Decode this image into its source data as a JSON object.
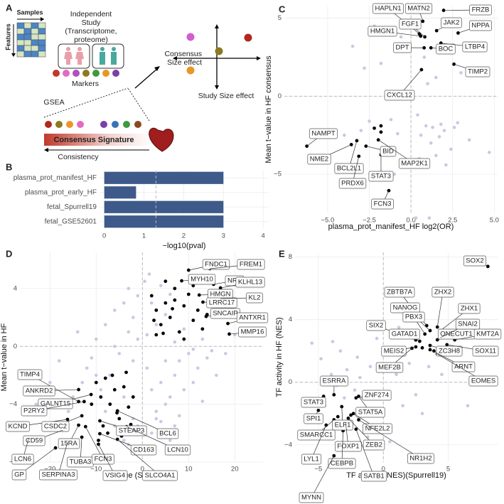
{
  "diagram": {
    "panel": "A",
    "samples": "Samples",
    "features": "Features",
    "study": [
      "Independent",
      "Study",
      "(Transcriptome,",
      "proteome)"
    ],
    "markers": "Markers",
    "gsea": "GSEA",
    "signature": "Consensus Signature",
    "consistency": "Consistency",
    "consensus_axis": [
      "Consensus",
      "Size effect"
    ],
    "study_axis": "Study Size effect"
  },
  "chart_data": [
    {
      "type": "bar",
      "panel": "B",
      "categories": [
        "plasma_prot_manifest_HF",
        "plasma_prot_early_HF",
        "fetal_Spurrell19",
        "fetal_GSE52601"
      ],
      "values": [
        3,
        0.8,
        3,
        3
      ],
      "color": "#3d5a8a",
      "xlabel": "−log10(pval)",
      "xlim": [
        -0.12,
        4.14
      ],
      "xticks": [
        0,
        1,
        2,
        3,
        4
      ],
      "vline": 1.3,
      "grid": true
    },
    {
      "type": "scatter",
      "panel": "C",
      "xlabel": "plasma_prot_manifest_HF log2(OR)",
      "ylabel": "Mean t−value in HF consensus",
      "xlim": [
        -7.6,
        5.2
      ],
      "ylim": [
        -7.5,
        5.8
      ],
      "xticks": [
        {
          "value": -5,
          "label": "−5.0"
        },
        {
          "value": -2.5,
          "label": "−2.5"
        },
        {
          "value": 0,
          "label": "0.0"
        },
        {
          "value": 2.5,
          "label": "2.5"
        },
        {
          "value": 5,
          "label": "5.0"
        }
      ],
      "yticks": [
        {
          "value": -5,
          "label": "−5"
        },
        0,
        5
      ],
      "vline": 0,
      "hline": 0,
      "grid": true,
      "series": [
        {
          "color": "#c9c9e3",
          "x": [
            -2.2,
            -3.5,
            -1.8,
            -0.6,
            -2.8,
            0.8,
            1.5,
            2.2,
            3.0,
            1.0,
            0.4,
            1.8,
            2.6,
            -1.2,
            -0.8,
            0.6,
            1.2,
            2.0,
            2.8,
            1.5,
            -2.5,
            -1.5,
            -3.0,
            -0.5,
            0.9,
            1.7,
            2.4,
            3.5,
            -4.0,
            -1.0,
            0.3,
            1.1,
            2.1,
            -2.0,
            4.7,
            0.5,
            1.3
          ],
          "y": [
            4.5,
            3.2,
            2.1,
            3.8,
            1.8,
            2.5,
            1.2,
            3.0,
            1.5,
            0.8,
            -1.2,
            -1.8,
            -2.0,
            -1.5,
            -2.4,
            -2.5,
            -3.0,
            -2.2,
            -1.7,
            -3.8,
            -1.6,
            -3.3,
            -2.2,
            -4.2,
            -1.9,
            -2.6,
            -3.4,
            -2.8,
            -2.5,
            -5.0,
            -7.8,
            -7.8,
            -4.4,
            -5.3,
            -3.6,
            -4.0,
            -2.0
          ]
        },
        {
          "color": "#000000",
          "labels": [
            "HAPLN1",
            "MATN2",
            "FRZB",
            "NPPA",
            "JAK2",
            "FGF1",
            "HMGN1",
            "DPT",
            "BOC",
            "LTBP4",
            "TIMP2",
            "CXCL12",
            "NAMPT",
            "NME2",
            "BCL2L1",
            "BID",
            "PRDX6",
            "STAT3",
            "MAP2K1",
            "FCN3",
            null,
            null,
            null
          ],
          "x": [
            0.5,
            0.71,
            1.96,
            2.83,
            1.54,
            0.83,
            0.58,
            0.79,
            1.2,
            1.8,
            2.58,
            0.63,
            -6.25,
            -3.58,
            -3.25,
            -2.7,
            -3.13,
            -1.8,
            -1.96,
            -1.33,
            -1.8,
            -2.2,
            -1.8
          ],
          "y": [
            4.0,
            4.8,
            5.5,
            4.05,
            4.2,
            3.8,
            3.85,
            3.1,
            3.1,
            3.4,
            2.05,
            1.7,
            -3.2,
            -3.1,
            -2.85,
            -3.2,
            -3.85,
            -3.75,
            -2.8,
            -6.05,
            -2.3,
            -2.05,
            -1.9
          ]
        }
      ]
    },
    {
      "type": "scatter",
      "panel": "D",
      "xlabel": "t−value (Spurrell19)",
      "ylabel": "Mean t−value in HF",
      "xlim": [
        -26.5,
        26.1
      ],
      "ylim": [
        -8,
        6.5
      ],
      "xticks": [
        {
          "value": -20,
          "label": "−20"
        },
        {
          "value": -10,
          "label": "−10"
        },
        0,
        10,
        20
      ],
      "yticks": [
        {
          "value": -8,
          "label": "−8"
        },
        {
          "value": -4,
          "label": "−4"
        },
        0,
        4
      ],
      "vline": 0,
      "hline": 0,
      "grid": true,
      "series": [
        {
          "color": "#c9c9e3",
          "x": [
            -20,
            -18,
            -15,
            -12,
            -10,
            -8,
            -6,
            -4,
            -3,
            -2,
            -1,
            -5,
            -7,
            -9,
            -11,
            -13,
            -16,
            -3,
            -1,
            -2,
            -4,
            -6,
            1,
            2,
            3,
            4,
            5,
            6,
            7,
            8,
            10,
            12,
            14,
            16,
            18,
            20,
            3,
            5,
            7,
            9,
            11,
            13,
            2,
            4,
            6,
            8,
            -1,
            -3,
            1,
            3,
            5,
            7,
            9,
            11,
            13,
            15,
            -8,
            -6,
            -4,
            -2,
            0.5,
            2,
            4,
            6,
            -10,
            -14,
            22,
            -23,
            -19,
            1.5
          ],
          "y": [
            -2.5,
            -1,
            -3.5,
            -1.5,
            0.5,
            1.5,
            2.5,
            3.0,
            4.0,
            2.0,
            0.5,
            -0.5,
            -2.0,
            -3.0,
            -0.8,
            -2.5,
            -4.5,
            1.0,
            3.5,
            -1.0,
            -3.5,
            0.0,
            -1.5,
            -3.0,
            -4.5,
            -2.5,
            -1.0,
            -3.5,
            -2.0,
            -1.0,
            -0.5,
            -1.5,
            -0.8,
            -2.0,
            -0.5,
            0.8,
            -5.0,
            -4.0,
            -5.5,
            -3.0,
            -2.5,
            -3.8,
            -6.0,
            -5.2,
            -6.5,
            -4.8,
            -5.5,
            -6.8,
            0.8,
            1.5,
            2.2,
            0.3,
            1.2,
            -0.2,
            0.5,
            -0.3,
            -4.5,
            -5.5,
            -6.5,
            -5.0,
            4.5,
            3.0,
            4.2,
            3.6,
            -2.0,
            1.0,
            1.8,
            -4.0,
            -5.5,
            5.0
          ]
        },
        {
          "color": "#000000",
          "labels": [
            "FNDC1",
            "FREM1",
            "MYH10",
            "NRK",
            "HMGN",
            "KLHL13",
            "LRRC17",
            "KL2",
            "SNCAIP",
            "ANTXR1",
            "MMP16",
            "TIMP4",
            "ANKRD2",
            "GALNT15",
            "P2RY2",
            "KCND",
            "CSDC2",
            "CD59",
            "15RA",
            "TUBA3",
            "FCN3",
            "STEAP3",
            "BCL6",
            "CD163",
            "LCN10",
            "VSIG4",
            "SLCO4A1",
            "LCN6",
            "GP",
            "SERPINA3",
            null,
            null,
            null,
            null,
            null,
            null,
            null,
            null,
            null,
            null,
            null,
            null,
            null,
            null,
            null,
            null,
            null,
            null,
            null,
            null,
            null,
            null,
            null,
            null,
            null,
            null,
            null,
            null,
            null,
            null,
            null,
            null,
            null,
            null,
            null,
            null,
            null,
            null,
            null,
            null
          ],
          "x": [
            10,
            14.6,
            8.5,
            15.4,
            12.3,
            16.9,
            13.1,
            16.9,
            13.8,
            18.5,
            18.8,
            -13.8,
            -13.8,
            -11.1,
            -12.6,
            -16.2,
            -13.1,
            -17.2,
            -13.8,
            -13.1,
            -12.3,
            -9.2,
            -5.4,
            -9.2,
            -3.4,
            -9.5,
            -5.4,
            -24.6,
            -18.8,
            -16.2,
            2,
            3,
            4,
            5,
            6,
            7,
            8,
            9,
            10,
            11,
            12,
            13,
            14,
            15,
            3,
            5,
            7,
            9,
            11,
            2.5,
            4.5,
            6.5,
            -10,
            -9,
            -8,
            -7,
            -6,
            -5,
            -4,
            -3,
            -2,
            -8.5,
            -7.5,
            -6.5,
            -5.5,
            -4.5,
            -3.5,
            -2.5,
            -11,
            -9.5
          ],
          "y": [
            5.27,
            5.37,
            4.53,
            4.29,
            3.55,
            4.04,
            3.06,
            3.3,
            2.07,
            1.58,
            0.85,
            -3.82,
            -2.99,
            -3.33,
            -3.82,
            -5.05,
            -4.8,
            -5.79,
            -5.45,
            -6.28,
            -5.55,
            -5.15,
            -4.46,
            -6.04,
            -5.55,
            -6.77,
            -6.43,
            -6.38,
            -7.02,
            -6.63,
            3.5,
            2.5,
            1.5,
            3.0,
            2.0,
            4.0,
            1.0,
            2.8,
            3.6,
            1.8,
            2.5,
            1.2,
            2.2,
            3.2,
            0.8,
            4.5,
            3.2,
            0.5,
            4.2,
            1.8,
            0.9,
            2.6,
            -2.5,
            -3.5,
            -2.2,
            -4.0,
            -3.0,
            -5.0,
            -2.8,
            -4.2,
            -3.5,
            -5.5,
            -6.0,
            -2.0,
            -4.6,
            -6.2,
            -1.8,
            -5.4,
            -4.0,
            -6.5
          ]
        }
      ]
    },
    {
      "type": "scatter",
      "panel": "E",
      "xlabel": "TF activity (NES)(Spurrell19)",
      "ylabel": "TF activity in HF (NES)",
      "xlim": [
        -6.8,
        8.8
      ],
      "ylim": [
        -5.1,
        8.3
      ],
      "xticks": [
        {
          "value": -5,
          "label": "−5"
        },
        0,
        5
      ],
      "yticks": [
        {
          "value": -4,
          "label": "−4"
        },
        0,
        4,
        8
      ],
      "vline": 0,
      "hline": 0,
      "grid": true,
      "series": [
        {
          "color": "#c9c9e3",
          "x": [
            -5.5,
            -4.8,
            -4.0,
            -3.3,
            -2.8,
            -2.2,
            -1.6,
            -1.0,
            -0.5,
            -4.5,
            -3.0,
            -2.5,
            -1.8,
            -1.2,
            -4.2,
            -3.6,
            1.0,
            2.0,
            2.5,
            3.0,
            1.5,
            2.2,
            3.5,
            0.5,
            -0.8,
            6.0,
            6.5,
            -5.8,
            -2.0,
            4.5,
            1.2,
            -3.9
          ],
          "y": [
            2.5,
            1.5,
            0.5,
            2.0,
            0.8,
            -0.5,
            -1.0,
            1.0,
            2.8,
            -1.5,
            -1.0,
            -2.8,
            0.3,
            -3.5,
            -3.2,
            -0.2,
            0.5,
            1.2,
            -0.8,
            -2.0,
            -1.5,
            4.5,
            1.0,
            -3.8,
            -0.8,
            2.2,
            -1.5,
            -2.5,
            1.6,
            0.5,
            3.5,
            2.6
          ]
        },
        {
          "color": "#000000",
          "labels": [
            "SOX2",
            "ZBTB7A",
            "ZHX2",
            "NANOG",
            "PBX3",
            "ZHX1",
            "SIX2",
            "GATAD1",
            "ONECUT1",
            "KMT2A",
            "SNAI2",
            "ZC3H8",
            "MEIS2",
            "SOX11",
            "MEF2B",
            "ARNT",
            "EOMES",
            "ESRRA",
            "ZNF274",
            "STAT3",
            "STAT5A",
            "SPI1",
            "ELF1",
            "NFE2L2",
            "SMARCC1",
            "ZEB2",
            "NR1H2",
            "FOXP1",
            "LYL1",
            "CEBPB",
            "SATB1",
            "MYNN",
            null,
            null,
            null,
            null,
            null,
            null
          ],
          "x": [
            8.05,
            3.34,
            4.16,
            3.6,
            3.2,
            4.4,
            2.5,
            2.8,
            4.16,
            5.5,
            4.4,
            3.6,
            2.5,
            4.9,
            2.2,
            3.6,
            4.16,
            -3.8,
            -2.1,
            -4.6,
            -1.9,
            -5.0,
            -3.2,
            -2.3,
            -3.8,
            -2.7,
            -1.9,
            -2.9,
            -4.4,
            -3.1,
            -2.1,
            -3.8,
            3.0,
            3.9,
            4.6,
            -2.5,
            -3.5,
            -1.6
          ],
          "y": [
            7.4,
            3.62,
            3.53,
            3.3,
            3.08,
            3.3,
            2.7,
            2.62,
            2.71,
            2.71,
            2.85,
            2.35,
            2.26,
            2.4,
            2.17,
            2.08,
            1.8,
            -0.8,
            -1.0,
            -0.9,
            -0.9,
            -1.8,
            -1.56,
            -2.0,
            -2.4,
            -2.3,
            -2.4,
            -2.6,
            -2.74,
            -3.1,
            -3.0,
            -4.7,
            2.2,
            2.0,
            3.0,
            -2.1,
            -2.2,
            -2.0
          ]
        }
      ]
    }
  ]
}
